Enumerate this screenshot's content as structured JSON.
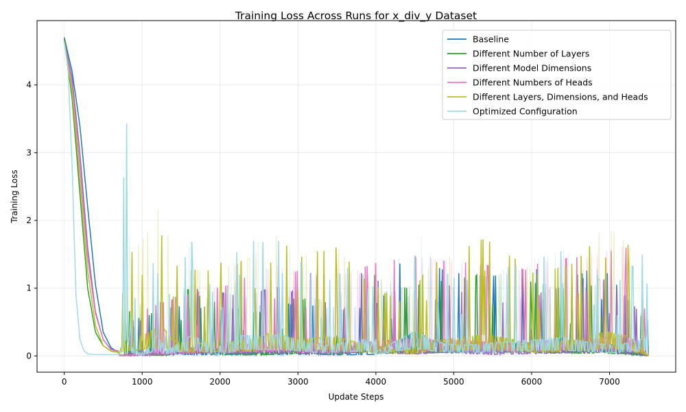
{
  "chart_data": {
    "type": "line",
    "title": "Training Loss Across Runs for x_div_y Dataset",
    "xlabel": "Update Steps",
    "ylabel": "Training Loss",
    "xlim": [
      -350,
      7850
    ],
    "ylim": [
      -0.24,
      4.95
    ],
    "xticks": [
      0,
      1000,
      2000,
      3000,
      4000,
      5000,
      6000,
      7000
    ],
    "yticks": [
      0,
      1,
      2,
      3,
      4
    ],
    "grid": true,
    "legend_position": "top-right",
    "series": [
      {
        "name": "Baseline",
        "color": "#1f77b4",
        "x": [
          0,
          100,
          200,
          300,
          400,
          500,
          600,
          700,
          800,
          1500,
          2100,
          3000,
          3600,
          4000,
          4200,
          4500,
          4770,
          5100,
          5500,
          6150,
          6350,
          6900,
          7500
        ],
        "y": [
          4.7,
          4.2,
          3.4,
          2.2,
          1.05,
          0.35,
          0.12,
          0.05,
          0.02,
          0.25,
          0.2,
          0.3,
          0.2,
          0.28,
          0.55,
          1.48,
          0.83,
          0.72,
          0.7,
          0.83,
          0.63,
          0.84,
          0.02
        ]
      },
      {
        "name": "Different Number of Layers",
        "color": "#2ca02c",
        "x": [
          0,
          100,
          200,
          300,
          400,
          500,
          600,
          800,
          900,
          1000,
          1300,
          1500,
          2000,
          2500,
          2800,
          3500,
          3900,
          4300,
          5500,
          6000,
          6500,
          6900,
          7500
        ],
        "y": [
          4.68,
          3.8,
          2.4,
          1.0,
          0.35,
          0.15,
          0.07,
          0.03,
          0.43,
          0.22,
          0.05,
          0.53,
          0.28,
          0.16,
          0.4,
          0.3,
          0.78,
          0.51,
          0.75,
          0.62,
          0.48,
          0.58,
          0.01
        ]
      },
      {
        "name": "Different Model Dimensions",
        "color": "#9467bd",
        "x": [
          0,
          100,
          200,
          300,
          400,
          500,
          600,
          800,
          1000,
          1600,
          1900,
          2300,
          2700,
          3400,
          3900,
          4100,
          4600,
          4800,
          5500,
          6000,
          6700,
          7000,
          7500
        ],
        "y": [
          4.65,
          4.1,
          3.0,
          1.6,
          0.65,
          0.24,
          0.1,
          0.04,
          0.05,
          0.5,
          0.48,
          0.38,
          0.55,
          0.3,
          0.85,
          0.5,
          0.35,
          0.63,
          0.28,
          0.4,
          0.68,
          0.63,
          0.01
        ]
      },
      {
        "name": "Different Numbers of Heads",
        "color": "#e377c2",
        "x": [
          0,
          100,
          200,
          300,
          400,
          500,
          600,
          800,
          1200,
          1700,
          2000,
          2700,
          3100,
          3600,
          3900,
          4500,
          5200,
          5900,
          6100,
          6700,
          7200,
          7450,
          7500
        ],
        "y": [
          4.63,
          4.0,
          2.8,
          1.45,
          0.62,
          0.24,
          0.09,
          0.04,
          0.3,
          0.45,
          0.52,
          0.85,
          0.72,
          0.72,
          0.86,
          1.0,
          0.88,
          0.78,
          0.9,
          0.98,
          1.13,
          0.7,
          0.01
        ]
      },
      {
        "name": "Different Layers, Dimensions, and Heads",
        "color": "#bcbd22",
        "x": [
          0,
          100,
          200,
          300,
          400,
          500,
          600,
          700,
          750,
          1000,
          1250,
          1400,
          1800,
          2000,
          2100,
          2450,
          2650,
          3000,
          3500,
          3900,
          4400,
          4650,
          5400,
          5800,
          6100,
          6600,
          6950,
          7250,
          7500
        ],
        "y": [
          4.65,
          3.9,
          2.6,
          1.25,
          0.45,
          0.15,
          0.07,
          0.05,
          0.93,
          1.2,
          1.78,
          0.88,
          0.73,
          0.9,
          0.82,
          1.0,
          1.38,
          0.98,
          1.13,
          0.6,
          0.28,
          0.82,
          1.26,
          0.93,
          0.7,
          0.93,
          1.45,
          1.15,
          0.02
        ]
      },
      {
        "name": "Optimized Configuration",
        "color": "#9edae5",
        "x": [
          0,
          50,
          100,
          150,
          200,
          250,
          300,
          400,
          700,
          800,
          850,
          1000,
          1200,
          1300,
          1650,
          2000,
          2250,
          2800,
          3300,
          3900,
          4000,
          4500,
          4800,
          5100,
          6400,
          6800,
          7100,
          7480,
          7500
        ],
        "y": [
          4.62,
          4.2,
          2.8,
          0.9,
          0.25,
          0.08,
          0.03,
          0.02,
          0.02,
          3.43,
          0.6,
          0.05,
          1.22,
          0.3,
          1.25,
          0.15,
          1.2,
          1.22,
          0.57,
          1.0,
          0.25,
          1.48,
          0.8,
          0.62,
          1.08,
          0.75,
          0.6,
          1.07,
          0.03
        ]
      }
    ]
  }
}
